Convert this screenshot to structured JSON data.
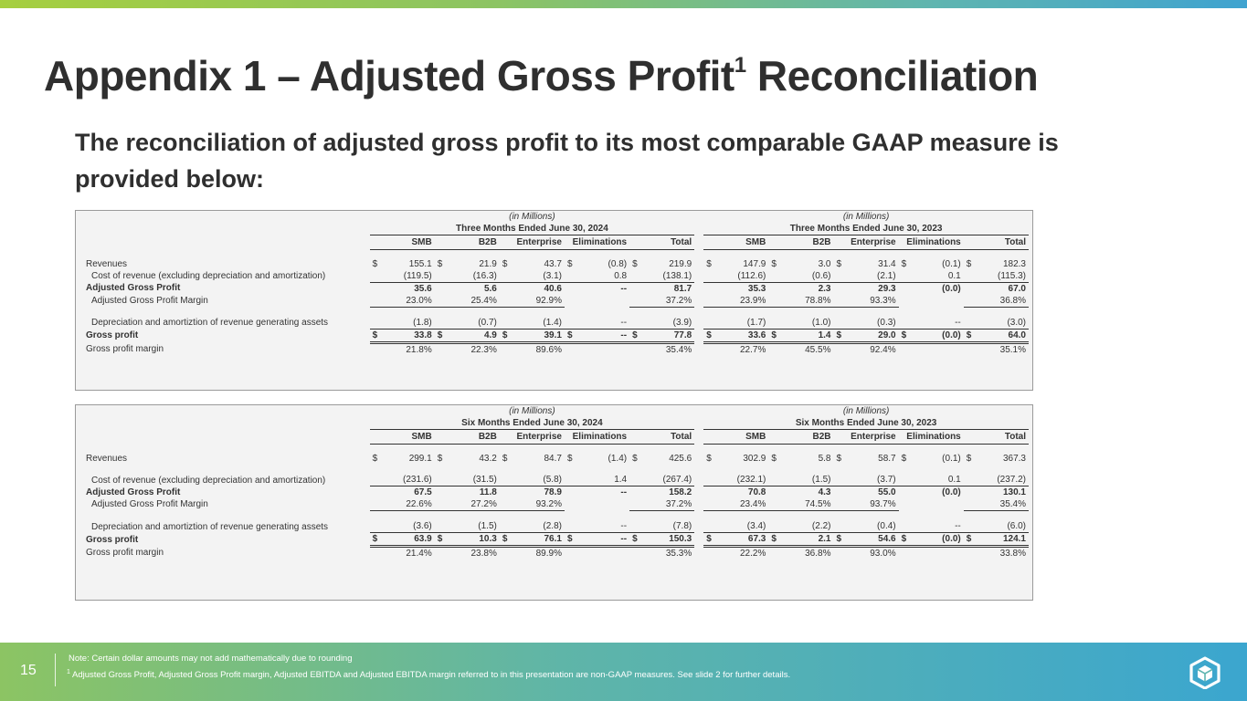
{
  "title_main": "Appendix 1 – Adjusted Gross Profit",
  "title_sup": "1",
  "title_end": " Reconciliation",
  "subtitle": "The reconciliation of adjusted gross profit to its most comparable GAAP measure is provided below:",
  "table1": {
    "units_left": "(in Millions)",
    "units_right": "(in Millions)",
    "period_left": "Three Months Ended June 30, 2024",
    "period_right": "Three Months Ended June 30, 2023",
    "columns": [
      "SMB",
      "B2B",
      "Enterprise",
      "Eliminations",
      "Total"
    ],
    "rows": [
      {
        "label": "Revenues",
        "style": "plain",
        "dollar": true,
        "left": [
          "155.1",
          "21.9",
          "43.7",
          "(0.8)",
          "219.9"
        ],
        "right": [
          "147.9",
          "3.0",
          "31.4",
          "(0.1)",
          "182.3"
        ]
      },
      {
        "label": "Cost of revenue (excluding depreciation and amortization)",
        "style": "indent-ul",
        "left": [
          "(119.5)",
          "(16.3)",
          "(3.1)",
          "0.8",
          "(138.1)"
        ],
        "right": [
          "(112.6)",
          "(0.6)",
          "(2.1)",
          "0.1",
          "(115.3)"
        ]
      },
      {
        "label": "Adjusted Gross Profit",
        "style": "bold",
        "left": [
          "35.6",
          "5.6",
          "40.6",
          "--",
          "81.7"
        ],
        "right": [
          "35.3",
          "2.3",
          "29.3",
          "(0.0)",
          "67.0"
        ]
      },
      {
        "label": "Adjusted Gross Profit Margin",
        "style": "indent-ul",
        "left": [
          "23.0%",
          "25.4%",
          "92.9%",
          "",
          "37.2%"
        ],
        "right": [
          "23.9%",
          "78.8%",
          "93.3%",
          "",
          "36.8%"
        ]
      },
      {
        "label": "Depreciation and amortiztion of revenue generating assets",
        "style": "indent-tall-ul",
        "left": [
          "(1.8)",
          "(0.7)",
          "(1.4)",
          "--",
          "(3.9)"
        ],
        "right": [
          "(1.7)",
          "(1.0)",
          "(0.3)",
          "--",
          "(3.0)"
        ]
      },
      {
        "label": "Gross profit",
        "style": "bold-dul",
        "dollar": true,
        "left": [
          "33.8",
          "4.9",
          "39.1",
          "--",
          "77.8"
        ],
        "right": [
          "33.6",
          "1.4",
          "29.0",
          "(0.0)",
          "64.0"
        ]
      },
      {
        "label": "Gross profit margin",
        "style": "plain",
        "left": [
          "21.8%",
          "22.3%",
          "89.6%",
          "",
          "35.4%"
        ],
        "right": [
          "22.7%",
          "45.5%",
          "92.4%",
          "",
          "35.1%"
        ]
      }
    ]
  },
  "table2": {
    "units_left": "(in Millions)",
    "units_right": "(in Millions)",
    "period_left": "Six Months Ended June 30, 2024",
    "period_right": "Six Months Ended June 30, 2023",
    "columns": [
      "SMB",
      "B2B",
      "Enterprise",
      "Eliminations",
      "Total"
    ],
    "rows": [
      {
        "label": "Revenues",
        "style": "plain",
        "dollar": true,
        "left": [
          "299.1",
          "43.2",
          "84.7",
          "(1.4)",
          "425.6"
        ],
        "right": [
          "302.9",
          "5.8",
          "58.7",
          "(0.1)",
          "367.3"
        ]
      },
      {
        "label": "Cost of revenue (excluding depreciation and amortization)",
        "style": "indent-tall-ul",
        "left": [
          "(231.6)",
          "(31.5)",
          "(5.8)",
          "1.4",
          "(267.4)"
        ],
        "right": [
          "(232.1)",
          "(1.5)",
          "(3.7)",
          "0.1",
          "(237.2)"
        ]
      },
      {
        "label": "Adjusted Gross Profit",
        "style": "bold",
        "left": [
          "67.5",
          "11.8",
          "78.9",
          "--",
          "158.2"
        ],
        "right": [
          "70.8",
          "4.3",
          "55.0",
          "(0.0)",
          "130.1"
        ]
      },
      {
        "label": "Adjusted Gross Profit Margin",
        "style": "indent-ul",
        "left": [
          "22.6%",
          "27.2%",
          "93.2%",
          "",
          "37.2%"
        ],
        "right": [
          "23.4%",
          "74.5%",
          "93.7%",
          "",
          "35.4%"
        ]
      },
      {
        "label": "Depreciation and amortiztion of revenue generating assets",
        "style": "indent-tall-ul",
        "left": [
          "(3.6)",
          "(1.5)",
          "(2.8)",
          "--",
          "(7.8)"
        ],
        "right": [
          "(3.4)",
          "(2.2)",
          "(0.4)",
          "--",
          "(6.0)"
        ]
      },
      {
        "label": "Gross profit",
        "style": "bold-dul",
        "dollar": true,
        "left": [
          "63.9",
          "10.3",
          "76.1",
          "--",
          "150.3"
        ],
        "right": [
          "67.3",
          "2.1",
          "54.6",
          "(0.0)",
          "124.1"
        ]
      },
      {
        "label": "Gross profit margin",
        "style": "plain",
        "left": [
          "21.4%",
          "23.8%",
          "89.9%",
          "",
          "35.3%"
        ],
        "right": [
          "22.2%",
          "36.8%",
          "93.0%",
          "",
          "33.8%"
        ]
      }
    ]
  },
  "dollar_sign": "$",
  "footer": {
    "page_number": "15",
    "note": "Note: Certain dollar amounts may not add mathematically due to rounding",
    "footnote_mark": "1",
    "footnote": " Adjusted Gross Profit, Adjusted Gross Profit margin, Adjusted EBITDA and Adjusted EBITDA margin referred to in this presentation are non-GAAP measures. See slide 2 for further details.",
    "logo_icon": "box-logo-icon"
  }
}
